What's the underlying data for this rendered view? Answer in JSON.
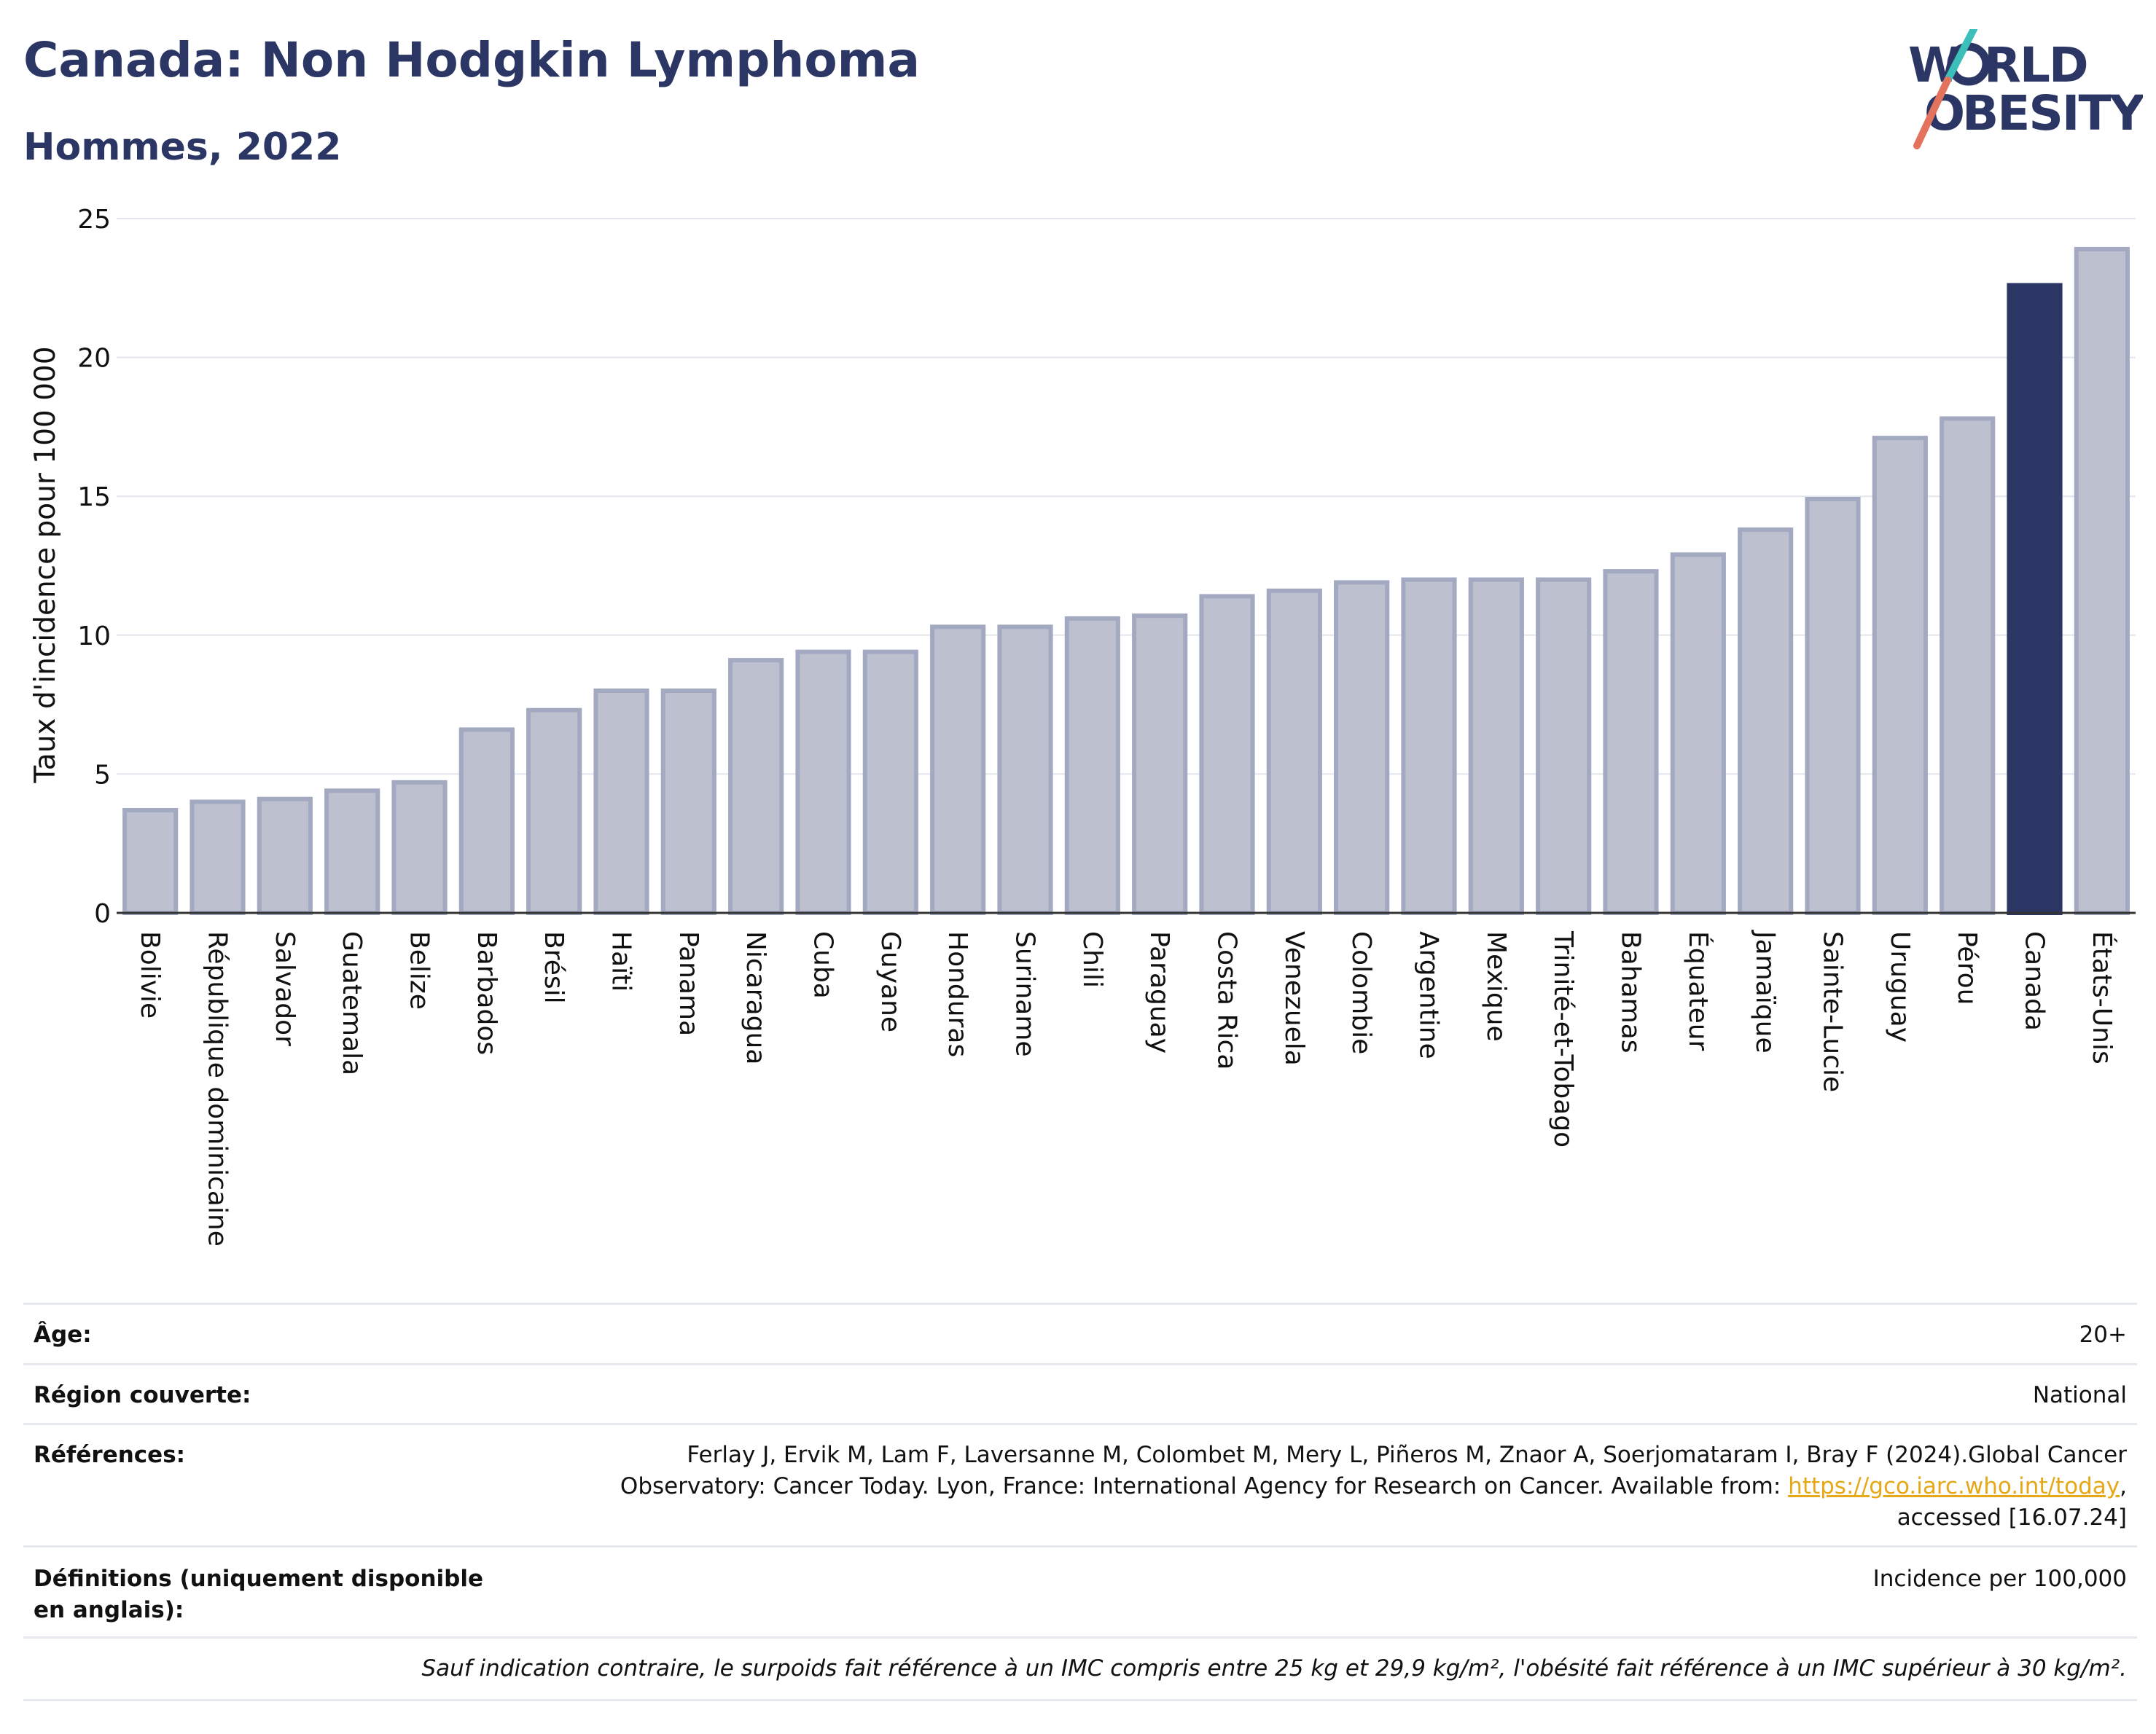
{
  "header": {
    "title": "Canada: Non Hodgkin Lymphoma",
    "subtitle": "Hommes, 2022"
  },
  "logo": {
    "line1": "W RLD",
    "line2": "BESITY",
    "text": "WORLD OBESITY"
  },
  "colors": {
    "highlight": "#2b3664",
    "bar_fill": "#bcc0cf",
    "bar_stroke": "#a3a9c0",
    "title": "#2b3664",
    "link": "#e6a817",
    "logo_teal": "#3bbfb8",
    "logo_coral": "#e4735d"
  },
  "chart_data": {
    "type": "bar",
    "title": "",
    "xlabel": "",
    "ylabel": "Taux d'incidence pour 100 000",
    "ylim": [
      0,
      25
    ],
    "yticks": [
      0,
      5,
      10,
      15,
      20,
      25
    ],
    "grid": true,
    "highlight_category": "Canada",
    "categories": [
      "Bolivie",
      "République dominicaine",
      "Salvador",
      "Guatemala",
      "Belize",
      "Barbados",
      "Brésil",
      "Haïti",
      "Panama",
      "Nicaragua",
      "Cuba",
      "Guyane",
      "Honduras",
      "Suriname",
      "Chili",
      "Paraguay",
      "Costa Rica",
      "Venezuela",
      "Colombie",
      "Argentine",
      "Mexique",
      "Trinité-et-Tobago",
      "Bahamas",
      "Équateur",
      "Jamaïque",
      "Sainte-Lucie",
      "Uruguay",
      "Pérou",
      "Canada",
      "États-Unis"
    ],
    "values": [
      3.7,
      4.0,
      4.1,
      4.4,
      4.7,
      6.6,
      7.3,
      8.0,
      8.0,
      9.1,
      9.4,
      9.4,
      10.3,
      10.3,
      10.6,
      10.7,
      11.4,
      11.6,
      11.9,
      12.0,
      12.0,
      12.0,
      12.3,
      12.9,
      13.8,
      14.9,
      17.1,
      17.8,
      22.6,
      23.9
    ]
  },
  "meta": {
    "age_label": "Âge:",
    "age_value": "20+",
    "region_label": "Région couverte:",
    "region_value": "National",
    "refs_label": "Références:",
    "refs_text_1": "Ferlay J, Ervik M, Lam F, Laversanne M, Colombet M, Mery L, Piñeros M, Znaor A, Soerjomataram I, Bray F (2024).Global Cancer",
    "refs_text_2": "Observatory: Cancer Today. Lyon, France: International Agency for Research on Cancer. Available from: ",
    "refs_link": "https://gco.iarc.who.int/today",
    "refs_text_3": ",",
    "refs_text_4": "accessed [16.07.24]",
    "defs_label": "Définitions (uniquement disponible en anglais):",
    "defs_value": "Incidence per 100,000",
    "footnote": "Sauf indication contraire, le surpoids fait référence à un IMC compris entre 25 kg et 29,9 kg/m², l'obésité fait référence à un IMC supérieur à 30 kg/m²."
  }
}
